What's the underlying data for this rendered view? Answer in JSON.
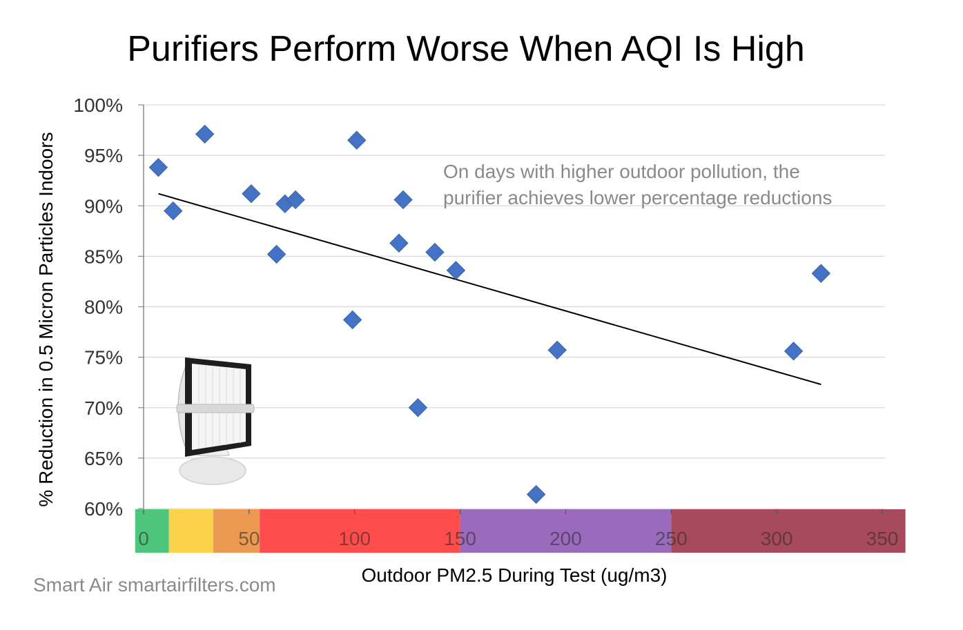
{
  "chart_data": {
    "type": "scatter",
    "title": "Purifiers Perform Worse When AQI Is High",
    "xlabel": "Outdoor PM2.5 During Test (ug/m3)",
    "ylabel": "% Reduction in 0.5 Micron Particles Indoors",
    "xlim": [
      0,
      350
    ],
    "ylim": [
      60,
      100
    ],
    "x_ticks": [
      "0",
      "50",
      "100",
      "150",
      "200",
      "250",
      "300",
      "350"
    ],
    "y_ticks": [
      "60%",
      "65%",
      "70%",
      "75%",
      "80%",
      "85%",
      "90%",
      "95%",
      "100%"
    ],
    "grid": true,
    "points": [
      {
        "x": 7,
        "y": 93.8
      },
      {
        "x": 14,
        "y": 89.5
      },
      {
        "x": 29,
        "y": 97.1
      },
      {
        "x": 51,
        "y": 91.2
      },
      {
        "x": 63,
        "y": 85.2
      },
      {
        "x": 67,
        "y": 90.2
      },
      {
        "x": 72,
        "y": 90.6
      },
      {
        "x": 99,
        "y": 78.7
      },
      {
        "x": 101,
        "y": 96.5
      },
      {
        "x": 121,
        "y": 86.3
      },
      {
        "x": 123,
        "y": 90.6
      },
      {
        "x": 130,
        "y": 70.0
      },
      {
        "x": 138,
        "y": 85.4
      },
      {
        "x": 148,
        "y": 83.6
      },
      {
        "x": 186,
        "y": 61.4
      },
      {
        "x": 196,
        "y": 75.7
      },
      {
        "x": 308,
        "y": 75.6
      },
      {
        "x": 321,
        "y": 83.3
      }
    ],
    "trendline": {
      "x": [
        7,
        321
      ],
      "y": [
        91.2,
        72.3
      ]
    },
    "annotation": {
      "line1": "On days with higher outdoor pollution, the",
      "line2": "purifier achieves lower percentage reductions"
    },
    "aqi_bands": [
      {
        "from": -4,
        "to": 12,
        "color": "#4dc57a"
      },
      {
        "from": 12,
        "to": 33,
        "color": "#fdd24b"
      },
      {
        "from": 33,
        "to": 55,
        "color": "#ec9951"
      },
      {
        "from": 55,
        "to": 150,
        "color": "#ff4d4d"
      },
      {
        "from": 150,
        "to": 250,
        "color": "#9a6bbc"
      },
      {
        "from": 250,
        "to": 361,
        "color": "#a84a5e"
      }
    ],
    "colors": {
      "marker": "#4472c4",
      "trendline": "#000000",
      "grid": "#d9d9d9"
    }
  },
  "credit": "Smart Air smartairfilters.com",
  "illustration": "air-purifier-icon"
}
